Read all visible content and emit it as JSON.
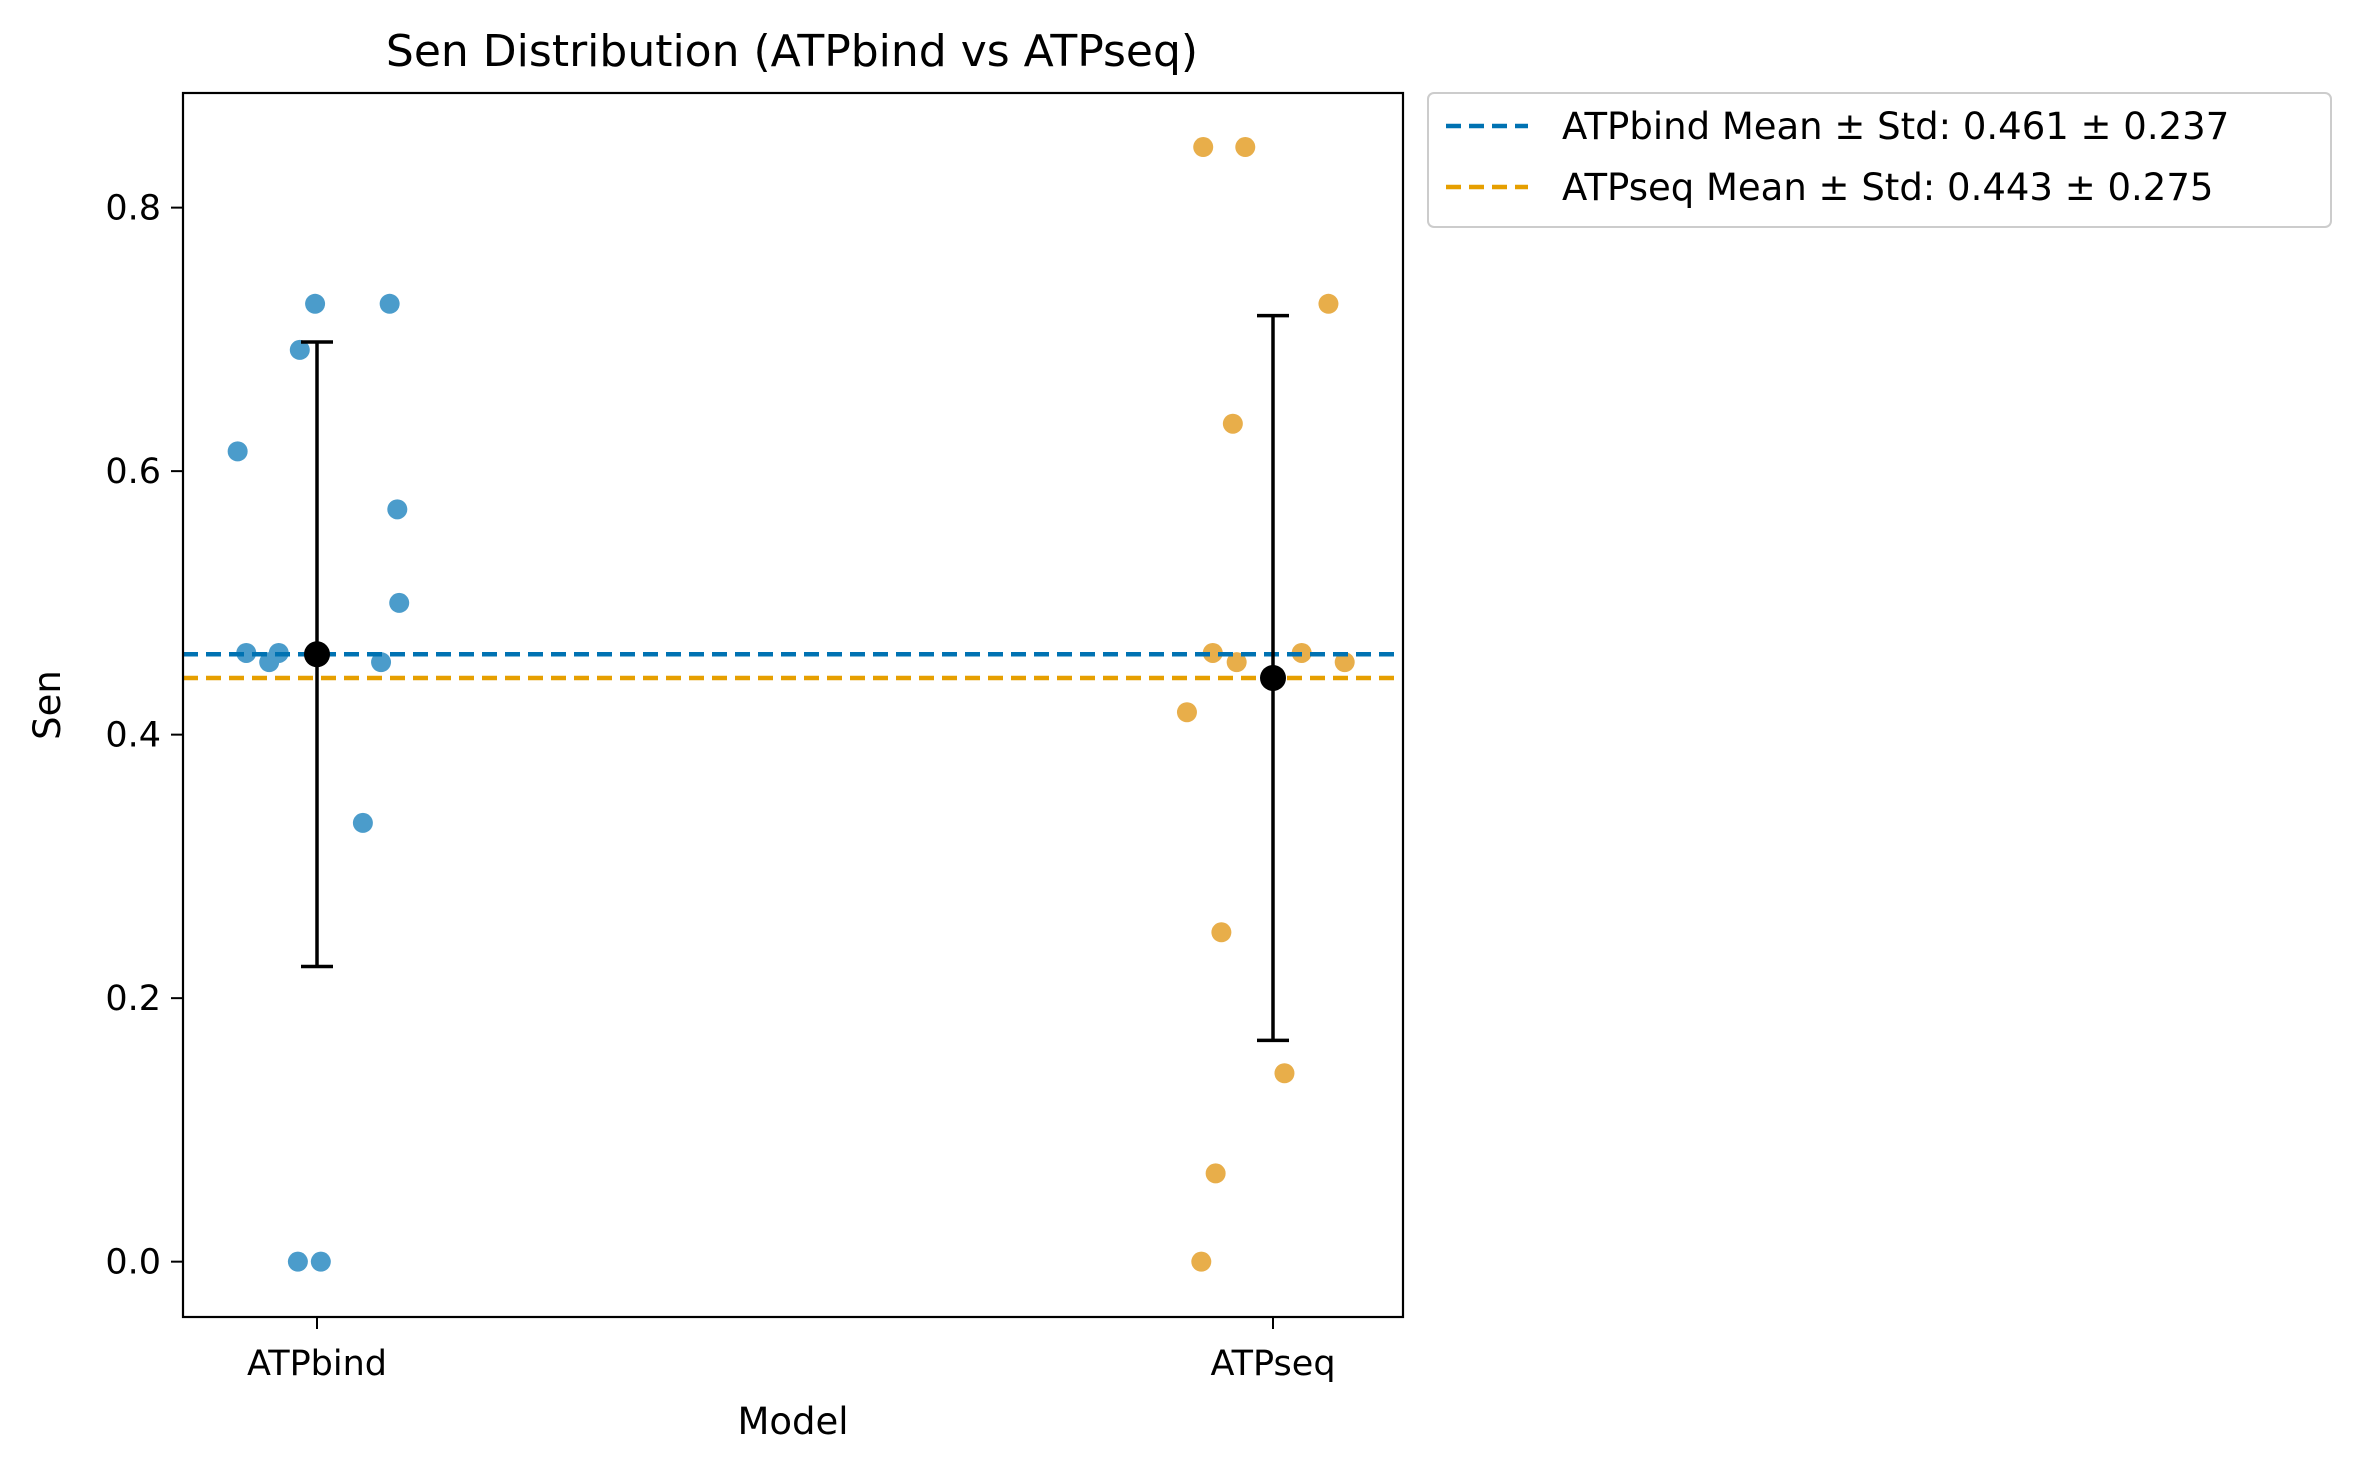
{
  "chart_data": {
    "type": "scatter",
    "title": "Sen Distribution (ATPbind vs ATPseq)",
    "xlabel": "Model",
    "ylabel": "Sen",
    "categories": [
      "ATPbind",
      "ATPseq"
    ],
    "ylim": [
      -0.042,
      0.887
    ],
    "yticks": [
      "0.0",
      "0.2",
      "0.4",
      "0.6",
      "0.8"
    ],
    "grid": false,
    "legend_position": "outside-top-right",
    "colors": {
      "ATPbind": "#0072B2",
      "ATPseq": "#E69F00",
      "ATPbind_points": "#4b9ccb",
      "ATPseq_points": "#e8ae4a",
      "mean_marker": "#000000"
    },
    "series": [
      {
        "name": "ATPbind",
        "category_index": 0,
        "points": [
          {
            "jitter": -0.083,
            "y": 0.615
          },
          {
            "jitter": -0.074,
            "y": 0.462
          },
          {
            "jitter": -0.05,
            "y": 0.455
          },
          {
            "jitter": -0.04,
            "y": 0.462
          },
          {
            "jitter": -0.018,
            "y": 0.692
          },
          {
            "jitter": -0.002,
            "y": 0.727
          },
          {
            "jitter": -0.02,
            "y": 0.0
          },
          {
            "jitter": 0.004,
            "y": 0.0
          },
          {
            "jitter": 0.048,
            "y": 0.333
          },
          {
            "jitter": 0.067,
            "y": 0.455
          },
          {
            "jitter": 0.076,
            "y": 0.727
          },
          {
            "jitter": 0.084,
            "y": 0.571
          },
          {
            "jitter": 0.086,
            "y": 0.5
          }
        ],
        "mean": 0.461,
        "std": 0.237,
        "legend_label": "ATPbind Mean ± Std: 0.461 ± 0.237"
      },
      {
        "name": "ATPseq",
        "category_index": 1,
        "points": [
          {
            "jitter": -0.073,
            "y": 0.846
          },
          {
            "jitter": -0.029,
            "y": 0.846
          },
          {
            "jitter": 0.058,
            "y": 0.727
          },
          {
            "jitter": -0.042,
            "y": 0.636
          },
          {
            "jitter": -0.063,
            "y": 0.462
          },
          {
            "jitter": -0.038,
            "y": 0.455
          },
          {
            "jitter": 0.03,
            "y": 0.462
          },
          {
            "jitter": 0.075,
            "y": 0.455
          },
          {
            "jitter": -0.09,
            "y": 0.417
          },
          {
            "jitter": -0.054,
            "y": 0.25
          },
          {
            "jitter": 0.012,
            "y": 0.143
          },
          {
            "jitter": -0.06,
            "y": 0.067
          },
          {
            "jitter": -0.075,
            "y": 0.0
          }
        ],
        "mean": 0.443,
        "std": 0.275,
        "legend_label": "ATPseq Mean ± Std: 0.443 ± 0.275"
      }
    ]
  }
}
